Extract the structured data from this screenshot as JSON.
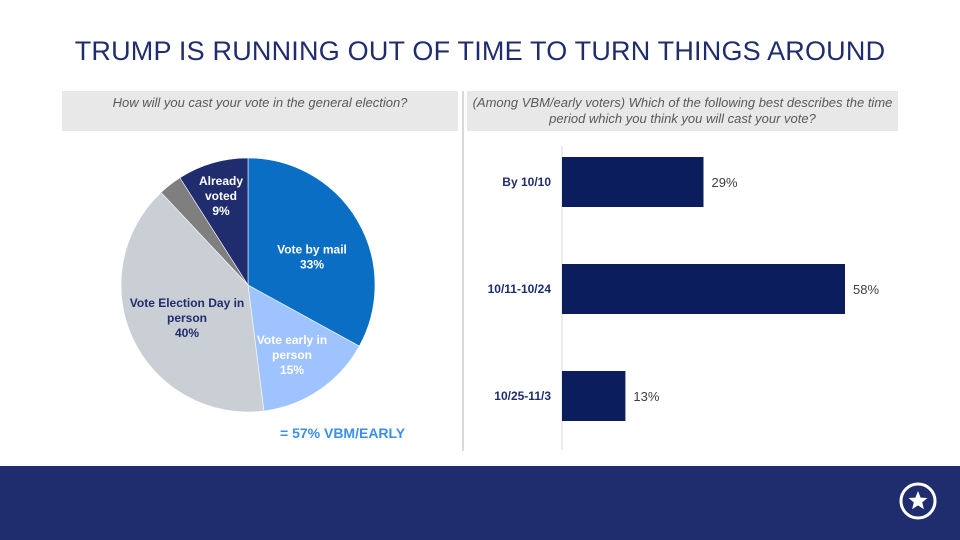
{
  "slide": {
    "title": "TRUMP IS RUNNING OUT OF TIME TO TURN THINGS AROUND",
    "summary": "= 57% VBM/EARLY",
    "colors": {
      "title": "#1f2d6e",
      "footer": "#1f2d6e",
      "question_bg": "#e8e8e8",
      "summary": "#3a8fe8"
    },
    "footer_icon": "star-circle-icon"
  },
  "chart_data": [
    {
      "type": "pie",
      "title": "How will you cast your vote in the general election?",
      "slices": [
        {
          "label": [
            "Vote by mail",
            "33%"
          ],
          "value": 33,
          "color": "#0a6fc4",
          "label_color": "#ffffff"
        },
        {
          "label": [
            "Vote early in",
            "person",
            "15%"
          ],
          "value": 15,
          "color": "#9fc3ff",
          "label_color": "#ffffff"
        },
        {
          "label": [
            "Vote Election Day in",
            "person",
            "40%"
          ],
          "value": 40,
          "color": "#c9cfd4",
          "label_color": "#1f2d6e"
        },
        {
          "label": [],
          "value": 3,
          "color": "#7f7f7f",
          "label_color": "#ffffff"
        },
        {
          "label": [
            "Already",
            "voted",
            "9%"
          ],
          "value": 9,
          "color": "#1f2d6e",
          "label_color": "#ffffff"
        }
      ]
    },
    {
      "type": "bar",
      "orientation": "horizontal",
      "title": "(Among VBM/early voters) Which of the following best describes the time period which you think you will cast your vote?",
      "categories": [
        "By 10/10",
        "10/11-10/24",
        "10/25-11/3"
      ],
      "values": [
        29,
        58,
        13
      ],
      "value_labels": [
        "29%",
        "58%",
        "13%"
      ],
      "bar_color": "#0c1d5e",
      "xlim": [
        0,
        58
      ]
    }
  ]
}
